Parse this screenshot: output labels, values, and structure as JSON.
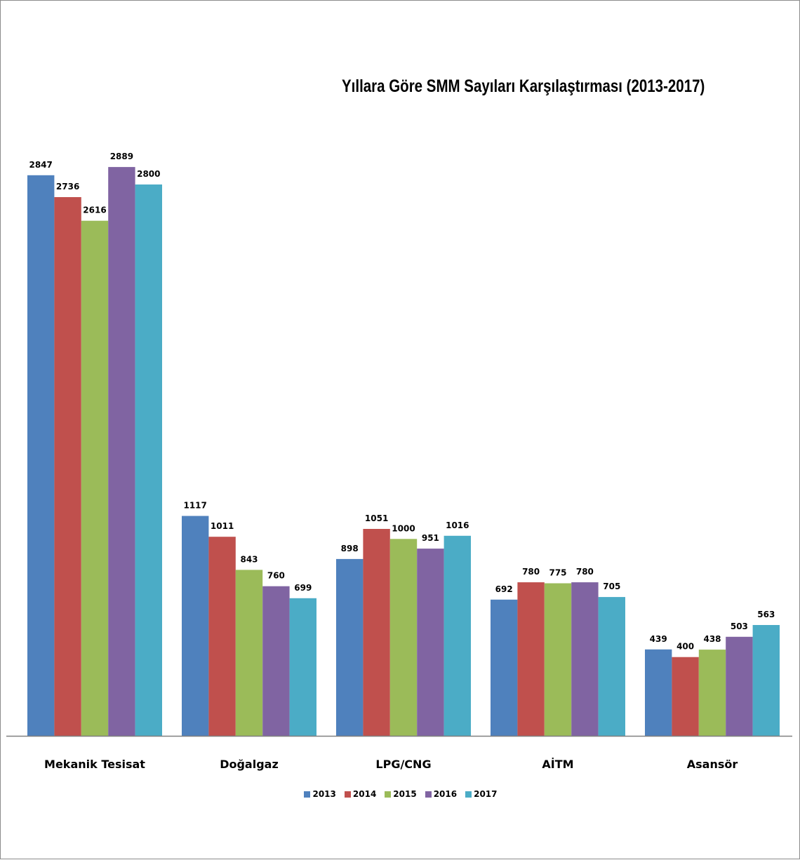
{
  "chart_data": {
    "type": "bar",
    "title": "Yıllara Göre SMM Sayıları Karşılaştırması (2013-2017)",
    "xlabel": "",
    "ylabel": "",
    "ylim": [
      0,
      3230
    ],
    "grid": true,
    "legend_position": "bottom",
    "categories": [
      "Mekanik Tesisat",
      "Doğalgaz",
      "LPG/CNG",
      "AİTM",
      "Asansör"
    ],
    "series": [
      {
        "name": "2013",
        "color": "#4f81bd",
        "values": [
          2847,
          1117,
          898,
          692,
          439
        ]
      },
      {
        "name": "2014",
        "color": "#c0504d",
        "values": [
          2736,
          1011,
          1051,
          780,
          400
        ]
      },
      {
        "name": "2015",
        "color": "#9bbb59",
        "values": [
          2616,
          843,
          1000,
          775,
          438
        ]
      },
      {
        "name": "2016",
        "color": "#8064a2",
        "values": [
          2889,
          760,
          951,
          780,
          503
        ]
      },
      {
        "name": "2017",
        "color": "#4bacc6",
        "values": [
          2800,
          699,
          1016,
          705,
          563
        ]
      }
    ]
  }
}
